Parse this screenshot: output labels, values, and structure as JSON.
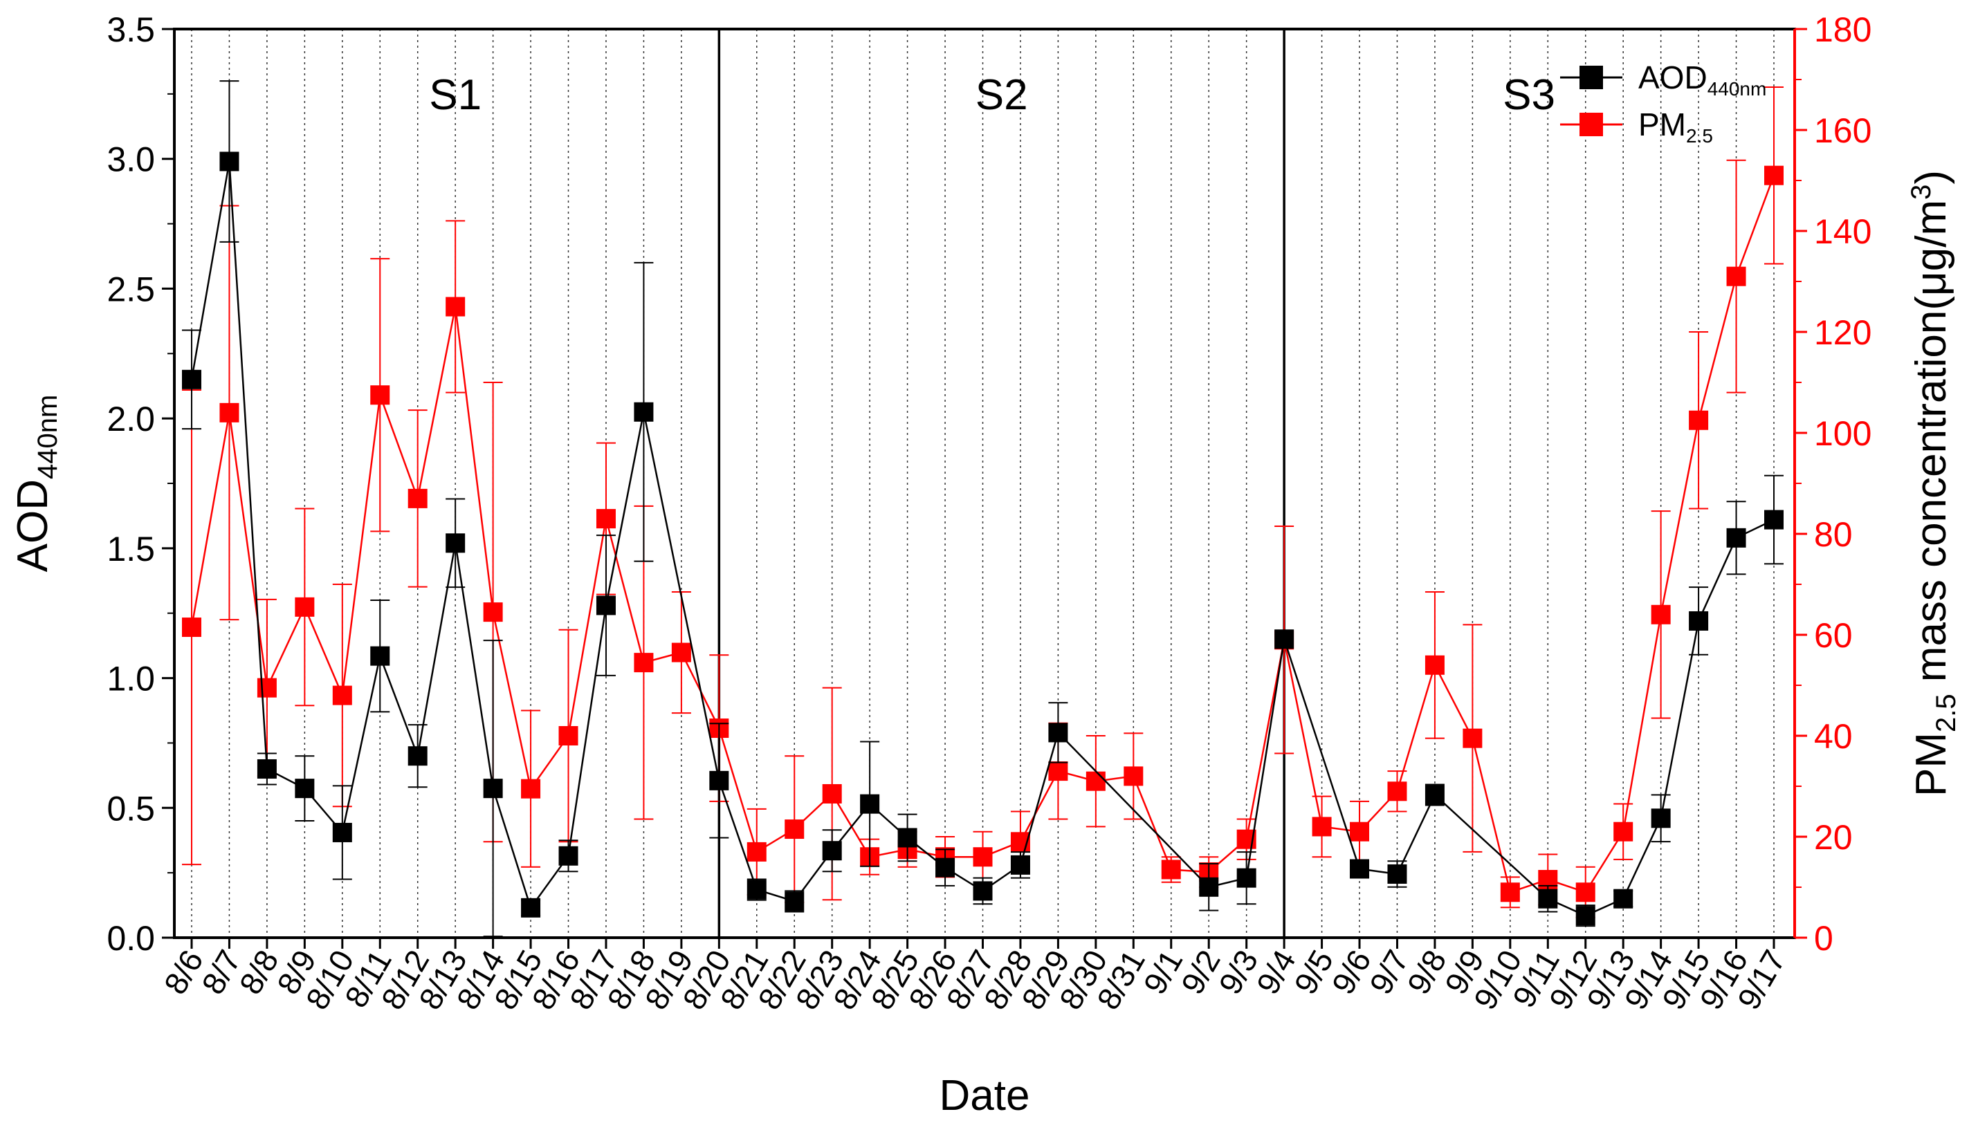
{
  "chart_data": {
    "type": "line",
    "xlabel": "Date",
    "ylabel_left_main": "AOD",
    "ylabel_left_sub": "440nm",
    "ylabel_right_main": "PM",
    "ylabel_right_sub": "2.5",
    "ylabel_right_rest": " mass concentration(μg/m",
    "ylabel_right_sup": "3",
    "ylabel_right_end": ")",
    "ylim_left": [
      0,
      3.5
    ],
    "ylim_right": [
      0,
      180
    ],
    "yticks_left": [
      "0.0",
      "0.5",
      "1.0",
      "1.5",
      "2.0",
      "2.5",
      "3.0",
      "3.5"
    ],
    "yticks_right": [
      "0",
      "20",
      "40",
      "60",
      "80",
      "100",
      "120",
      "140",
      "160",
      "180"
    ],
    "categories": [
      "8/6",
      "8/7",
      "8/8",
      "8/9",
      "8/10",
      "8/11",
      "8/12",
      "8/13",
      "8/14",
      "8/15",
      "8/16",
      "8/17",
      "8/18",
      "8/19",
      "8/20",
      "8/21",
      "8/22",
      "8/23",
      "8/24",
      "8/25",
      "8/26",
      "8/27",
      "8/28",
      "8/29",
      "8/30",
      "8/31",
      "9/1",
      "9/2",
      "9/3",
      "9/4",
      "9/5",
      "9/6",
      "9/7",
      "9/8",
      "9/9",
      "9/10",
      "9/11",
      "9/12",
      "9/13",
      "9/14",
      "9/15",
      "9/16",
      "9/17"
    ],
    "periods": [
      {
        "label": "S1",
        "start": 0,
        "end": 14
      },
      {
        "label": "S2",
        "start": 14,
        "end": 29
      },
      {
        "label": "S3",
        "start": 29,
        "end": 42
      }
    ],
    "series": [
      {
        "name_main": "AOD",
        "name_sub": "440nm",
        "axis": "left",
        "color": "#000000",
        "values": [
          2.15,
          2.99,
          0.65,
          0.575,
          0.405,
          1.085,
          0.7,
          1.52,
          0.575,
          0.115,
          0.315,
          1.28,
          2.025,
          null,
          0.605,
          0.185,
          0.14,
          0.335,
          0.515,
          0.385,
          0.27,
          0.18,
          0.28,
          0.79,
          null,
          null,
          null,
          0.195,
          0.23,
          1.15,
          null,
          0.265,
          0.245,
          0.55,
          null,
          null,
          0.15,
          0.085,
          0.15,
          0.46,
          1.22,
          1.54,
          1.61
        ],
        "errors": [
          0.19,
          0.31,
          0.06,
          0.125,
          0.18,
          0.215,
          0.12,
          0.17,
          0.57,
          0.03,
          0.06,
          0.27,
          0.575,
          null,
          0.22,
          0.04,
          0.04,
          0.08,
          0.24,
          0.09,
          0.07,
          0.05,
          0.05,
          0.115,
          null,
          null,
          null,
          0.09,
          0.1,
          0.0,
          null,
          0.03,
          0.05,
          0.04,
          null,
          null,
          0.05,
          0.04,
          0.03,
          0.09,
          0.13,
          0.14,
          0.17
        ]
      },
      {
        "name_main": "PM",
        "name_sub": "2.5",
        "axis": "right",
        "color": "#ff0000",
        "values": [
          61.5,
          104,
          49.5,
          65.5,
          48,
          107.5,
          87,
          125,
          64.5,
          29.5,
          40,
          83,
          54.5,
          56.5,
          41.5,
          17,
          21.5,
          28.5,
          16,
          17.5,
          16,
          16,
          19,
          33,
          31,
          32,
          13.5,
          13,
          19.5,
          59,
          22,
          21,
          29,
          54,
          39.5,
          9,
          11.5,
          9,
          21,
          64,
          102.5,
          131,
          151
        ],
        "errors": [
          47,
          41,
          17.5,
          19.5,
          22,
          27,
          17.5,
          17,
          45.5,
          15.5,
          21,
          15,
          31,
          12,
          14.5,
          8.5,
          14.5,
          21,
          3.5,
          3.5,
          4,
          5,
          6,
          9.5,
          9,
          8.5,
          2.5,
          3,
          4,
          22.5,
          6,
          6,
          4,
          14.5,
          22.5,
          3,
          5,
          5,
          5.5,
          20.5,
          17.5,
          23,
          17.5
        ]
      }
    ],
    "legend_position": "top-right",
    "grid": "vertical-dotted",
    "title": ""
  }
}
